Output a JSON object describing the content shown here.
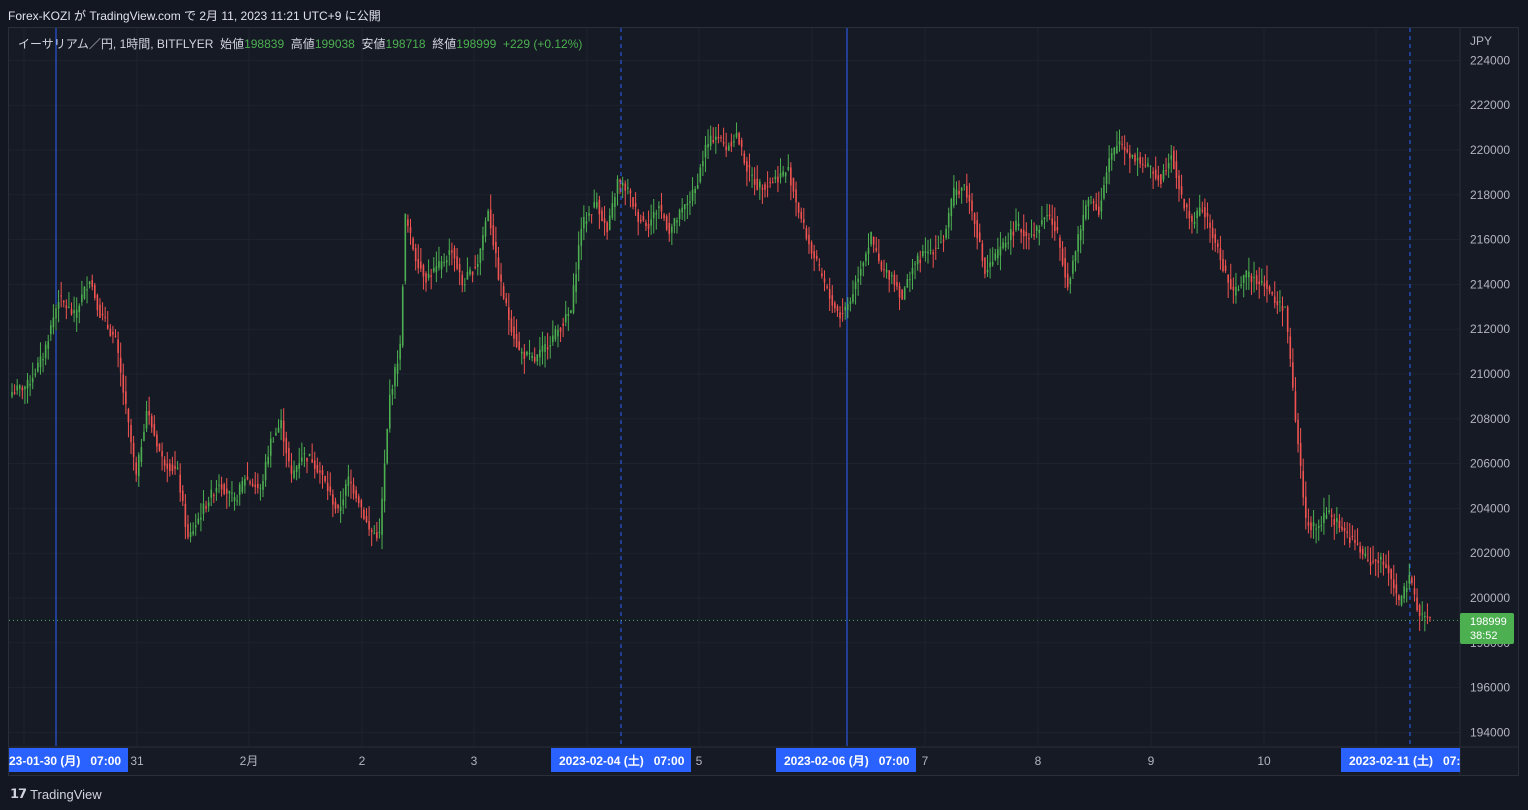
{
  "header": {
    "published_by": "Forex-KOZI が TradingView.com で 2月 11, 2023 11:21 UTC+9 に公開"
  },
  "legend": {
    "symbol": "イーサリアム／円, 1時間, BITFLYER",
    "open_label": "始値",
    "open": "198839",
    "high_label": "高値",
    "high": "199038",
    "low_label": "安値",
    "low": "198718",
    "close_label": "終値",
    "close": "198999",
    "change": "+229 (+0.12%)"
  },
  "price_axis": {
    "unit": "JPY",
    "current_price": "198999",
    "countdown": "38:52"
  },
  "footer": {
    "brand": "TradingView"
  },
  "colors": {
    "background": "#161a25",
    "up": "#4caf50",
    "down": "#f05350",
    "grid": "#1f232e",
    "marker_line": "#2962ff",
    "label_bg": "#2962ff"
  },
  "chart_data": {
    "type": "candlestick",
    "title": "イーサリアム／円, 1時間, BITFLYER",
    "ylabel": "JPY",
    "ylim": [
      193000,
      225000
    ],
    "yticks": [
      194000,
      196000,
      198000,
      200000,
      202000,
      204000,
      206000,
      208000,
      210000,
      212000,
      214000,
      216000,
      218000,
      220000,
      222000,
      224000
    ],
    "x_tick_labels": [
      "31",
      "2月",
      "2",
      "3",
      "5",
      "7",
      "8",
      "9",
      "10"
    ],
    "date_markers": [
      {
        "label": "23-01-30 (月)   07:00",
        "style": "solid"
      },
      {
        "label": "2023-02-04 (土)   07:00",
        "style": "dashed"
      },
      {
        "label": "2023-02-06 (月)   07:00",
        "style": "solid"
      },
      {
        "label": "2023-02-11 (土)   07:",
        "style": "dashed"
      }
    ],
    "last_price": 198999,
    "close_path": [
      [
        0,
        209200
      ],
      [
        6,
        209500
      ],
      [
        12,
        210800
      ],
      [
        18,
        213400
      ],
      [
        24,
        212600
      ],
      [
        30,
        214300
      ],
      [
        34,
        212700
      ],
      [
        40,
        211500
      ],
      [
        48,
        205400
      ],
      [
        52,
        208400
      ],
      [
        58,
        206200
      ],
      [
        64,
        205600
      ],
      [
        68,
        202600
      ],
      [
        74,
        204000
      ],
      [
        80,
        205200
      ],
      [
        86,
        204300
      ],
      [
        90,
        205400
      ],
      [
        96,
        204800
      ],
      [
        100,
        207000
      ],
      [
        104,
        207800
      ],
      [
        108,
        205400
      ],
      [
        112,
        206400
      ],
      [
        116,
        206200
      ],
      [
        120,
        205400
      ],
      [
        126,
        203800
      ],
      [
        130,
        205300
      ],
      [
        134,
        204400
      ],
      [
        138,
        203000
      ],
      [
        142,
        202800
      ],
      [
        146,
        209000
      ],
      [
        150,
        211200
      ],
      [
        152,
        217000
      ],
      [
        156,
        215200
      ],
      [
        160,
        214300
      ],
      [
        166,
        214900
      ],
      [
        170,
        215600
      ],
      [
        174,
        214000
      ],
      [
        180,
        215000
      ],
      [
        184,
        217400
      ],
      [
        188,
        214400
      ],
      [
        192,
        212500
      ],
      [
        196,
        211000
      ],
      [
        202,
        210600
      ],
      [
        206,
        211200
      ],
      [
        210,
        211800
      ],
      [
        216,
        212800
      ],
      [
        220,
        216600
      ],
      [
        226,
        217700
      ],
      [
        230,
        216300
      ],
      [
        234,
        218600
      ],
      [
        238,
        218200
      ],
      [
        242,
        217000
      ],
      [
        246,
        216700
      ],
      [
        250,
        217500
      ],
      [
        254,
        216400
      ],
      [
        258,
        217100
      ],
      [
        264,
        218200
      ],
      [
        268,
        220100
      ],
      [
        272,
        220700
      ],
      [
        276,
        220100
      ],
      [
        280,
        220700
      ],
      [
        284,
        219200
      ],
      [
        288,
        218400
      ],
      [
        292,
        218500
      ],
      [
        296,
        218800
      ],
      [
        300,
        219100
      ],
      [
        304,
        217300
      ],
      [
        308,
        215800
      ],
      [
        312,
        214600
      ],
      [
        316,
        213400
      ],
      [
        320,
        212600
      ],
      [
        324,
        213300
      ],
      [
        328,
        214800
      ],
      [
        332,
        216100
      ],
      [
        336,
        214600
      ],
      [
        340,
        214400
      ],
      [
        344,
        213400
      ],
      [
        348,
        214800
      ],
      [
        352,
        215300
      ],
      [
        356,
        215600
      ],
      [
        360,
        216000
      ],
      [
        364,
        218100
      ],
      [
        368,
        218400
      ],
      [
        372,
        216900
      ],
      [
        376,
        214500
      ],
      [
        380,
        215200
      ],
      [
        384,
        215900
      ],
      [
        388,
        216600
      ],
      [
        392,
        216200
      ],
      [
        396,
        216400
      ],
      [
        400,
        217200
      ],
      [
        404,
        216200
      ],
      [
        408,
        214000
      ],
      [
        412,
        216000
      ],
      [
        416,
        218000
      ],
      [
        420,
        217300
      ],
      [
        424,
        219500
      ],
      [
        428,
        220400
      ],
      [
        432,
        219800
      ],
      [
        436,
        219500
      ],
      [
        440,
        219100
      ],
      [
        444,
        218700
      ],
      [
        448,
        219900
      ],
      [
        452,
        217800
      ],
      [
        456,
        216800
      ],
      [
        460,
        217400
      ],
      [
        464,
        216200
      ],
      [
        468,
        214800
      ],
      [
        472,
        213500
      ],
      [
        476,
        214400
      ],
      [
        480,
        214300
      ],
      [
        484,
        214100
      ],
      [
        488,
        213200
      ],
      [
        492,
        213000
      ],
      [
        496,
        208000
      ],
      [
        500,
        203500
      ],
      [
        504,
        203000
      ],
      [
        508,
        203800
      ],
      [
        512,
        203400
      ],
      [
        516,
        202800
      ],
      [
        520,
        202300
      ],
      [
        524,
        201600
      ],
      [
        528,
        201700
      ],
      [
        532,
        201300
      ],
      [
        536,
        199800
      ],
      [
        540,
        200800
      ],
      [
        544,
        199300
      ],
      [
        548,
        198999
      ]
    ],
    "grid": true,
    "legend_position": "top-left"
  }
}
